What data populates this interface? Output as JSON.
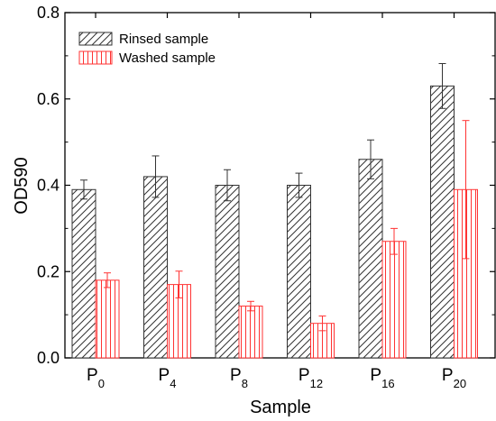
{
  "chart_data": {
    "type": "bar",
    "xlabel": "Sample",
    "ylabel": "OD590",
    "ylim": [
      0.0,
      0.8
    ],
    "yticks": [
      "0.0",
      "0.2",
      "0.4",
      "0.6",
      "0.8"
    ],
    "categories": [
      {
        "base": "P",
        "sub": "0"
      },
      {
        "base": "P",
        "sub": "4"
      },
      {
        "base": "P",
        "sub": "8"
      },
      {
        "base": "P",
        "sub": "12"
      },
      {
        "base": "P",
        "sub": "16"
      },
      {
        "base": "P",
        "sub": "20"
      }
    ],
    "series": [
      {
        "name": "Rinsed sample",
        "values": [
          0.39,
          0.42,
          0.4,
          0.4,
          0.46,
          0.63
        ],
        "errors": [
          0.022,
          0.048,
          0.036,
          0.028,
          0.045,
          0.052
        ],
        "color": "#333333",
        "hatch": "diagonal"
      },
      {
        "name": "Washed sample",
        "values": [
          0.18,
          0.17,
          0.12,
          0.08,
          0.27,
          0.39
        ],
        "errors": [
          0.017,
          0.031,
          0.011,
          0.017,
          0.03,
          0.16
        ],
        "color": "#ff3333",
        "hatch": "vertical"
      }
    ],
    "legend_position": "top-left",
    "grid": false
  }
}
